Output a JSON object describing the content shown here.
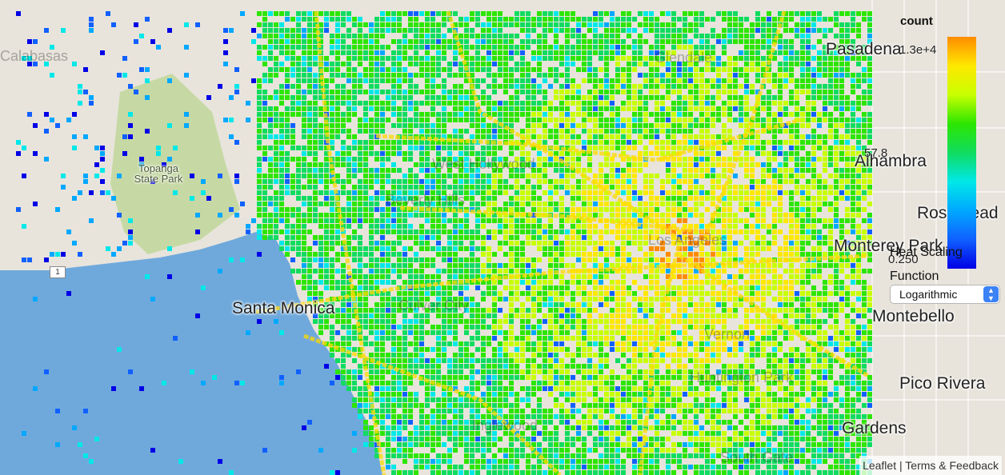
{
  "map": {
    "places": [
      {
        "id": "pasadena",
        "label": "Pasadena",
        "style": "big"
      },
      {
        "id": "alhambra",
        "label": "Alhambra",
        "style": "big"
      },
      {
        "id": "rosemead",
        "label": "Rosemead",
        "style": "big"
      },
      {
        "id": "monterey-park",
        "label": "Monterey Park",
        "style": "big"
      },
      {
        "id": "montebello",
        "label": "Montebello",
        "style": "big"
      },
      {
        "id": "pico-rivera",
        "label": "Pico Rivera",
        "style": "big"
      },
      {
        "id": "gardens",
        "label": "Gardens",
        "style": "big"
      },
      {
        "id": "santa-monica",
        "label": "Santa Monica",
        "style": "big"
      },
      {
        "id": "topanga",
        "label": "Topanga State Park",
        "style": "small"
      },
      {
        "id": "calabasas",
        "label": "Calabasas",
        "style": "ghost"
      },
      {
        "id": "west-hollywood",
        "label": "West Hollywood",
        "style": "ghost"
      },
      {
        "id": "beverly-hills",
        "label": "Beverly Hills",
        "style": "ghost"
      },
      {
        "id": "los-angeles",
        "label": "Los Angeles",
        "style": "ghost"
      },
      {
        "id": "culver-city",
        "label": "Culver City",
        "style": "ghost"
      },
      {
        "id": "inglewood",
        "label": "Inglewood",
        "style": "ghost"
      },
      {
        "id": "glendale",
        "label": "Glendale",
        "style": "ghost"
      },
      {
        "id": "vernon",
        "label": "Vernon",
        "style": "ghost"
      },
      {
        "id": "huntington-park",
        "label": "Huntington Park",
        "style": "ghost"
      },
      {
        "id": "south-gate",
        "label": "South Gate",
        "style": "ghost"
      }
    ],
    "highway_shield": "1",
    "colors": {
      "ocean": "#6fa9dc",
      "land": "#e8e4dc",
      "park": "#c6d9a4"
    }
  },
  "legend": {
    "title": "count",
    "ticks": {
      "max": "1.3e+4",
      "mid": "57.8",
      "min": "0.250"
    },
    "colorscale": [
      "#ff8c00",
      "#ffe800",
      "#c8ff00",
      "#2ce600",
      "#10dc60",
      "#00e8e8",
      "#00a8ff",
      "#1060ff",
      "#0000e6"
    ]
  },
  "controls": {
    "scaling_label": "Heat Scaling Function",
    "scaling_value": "Logarithmic",
    "scaling_options": [
      "Logarithmic"
    ]
  },
  "attribution": {
    "leaflet": "Leaflet",
    "separator": " | ",
    "terms": "Terms & Feedback"
  }
}
